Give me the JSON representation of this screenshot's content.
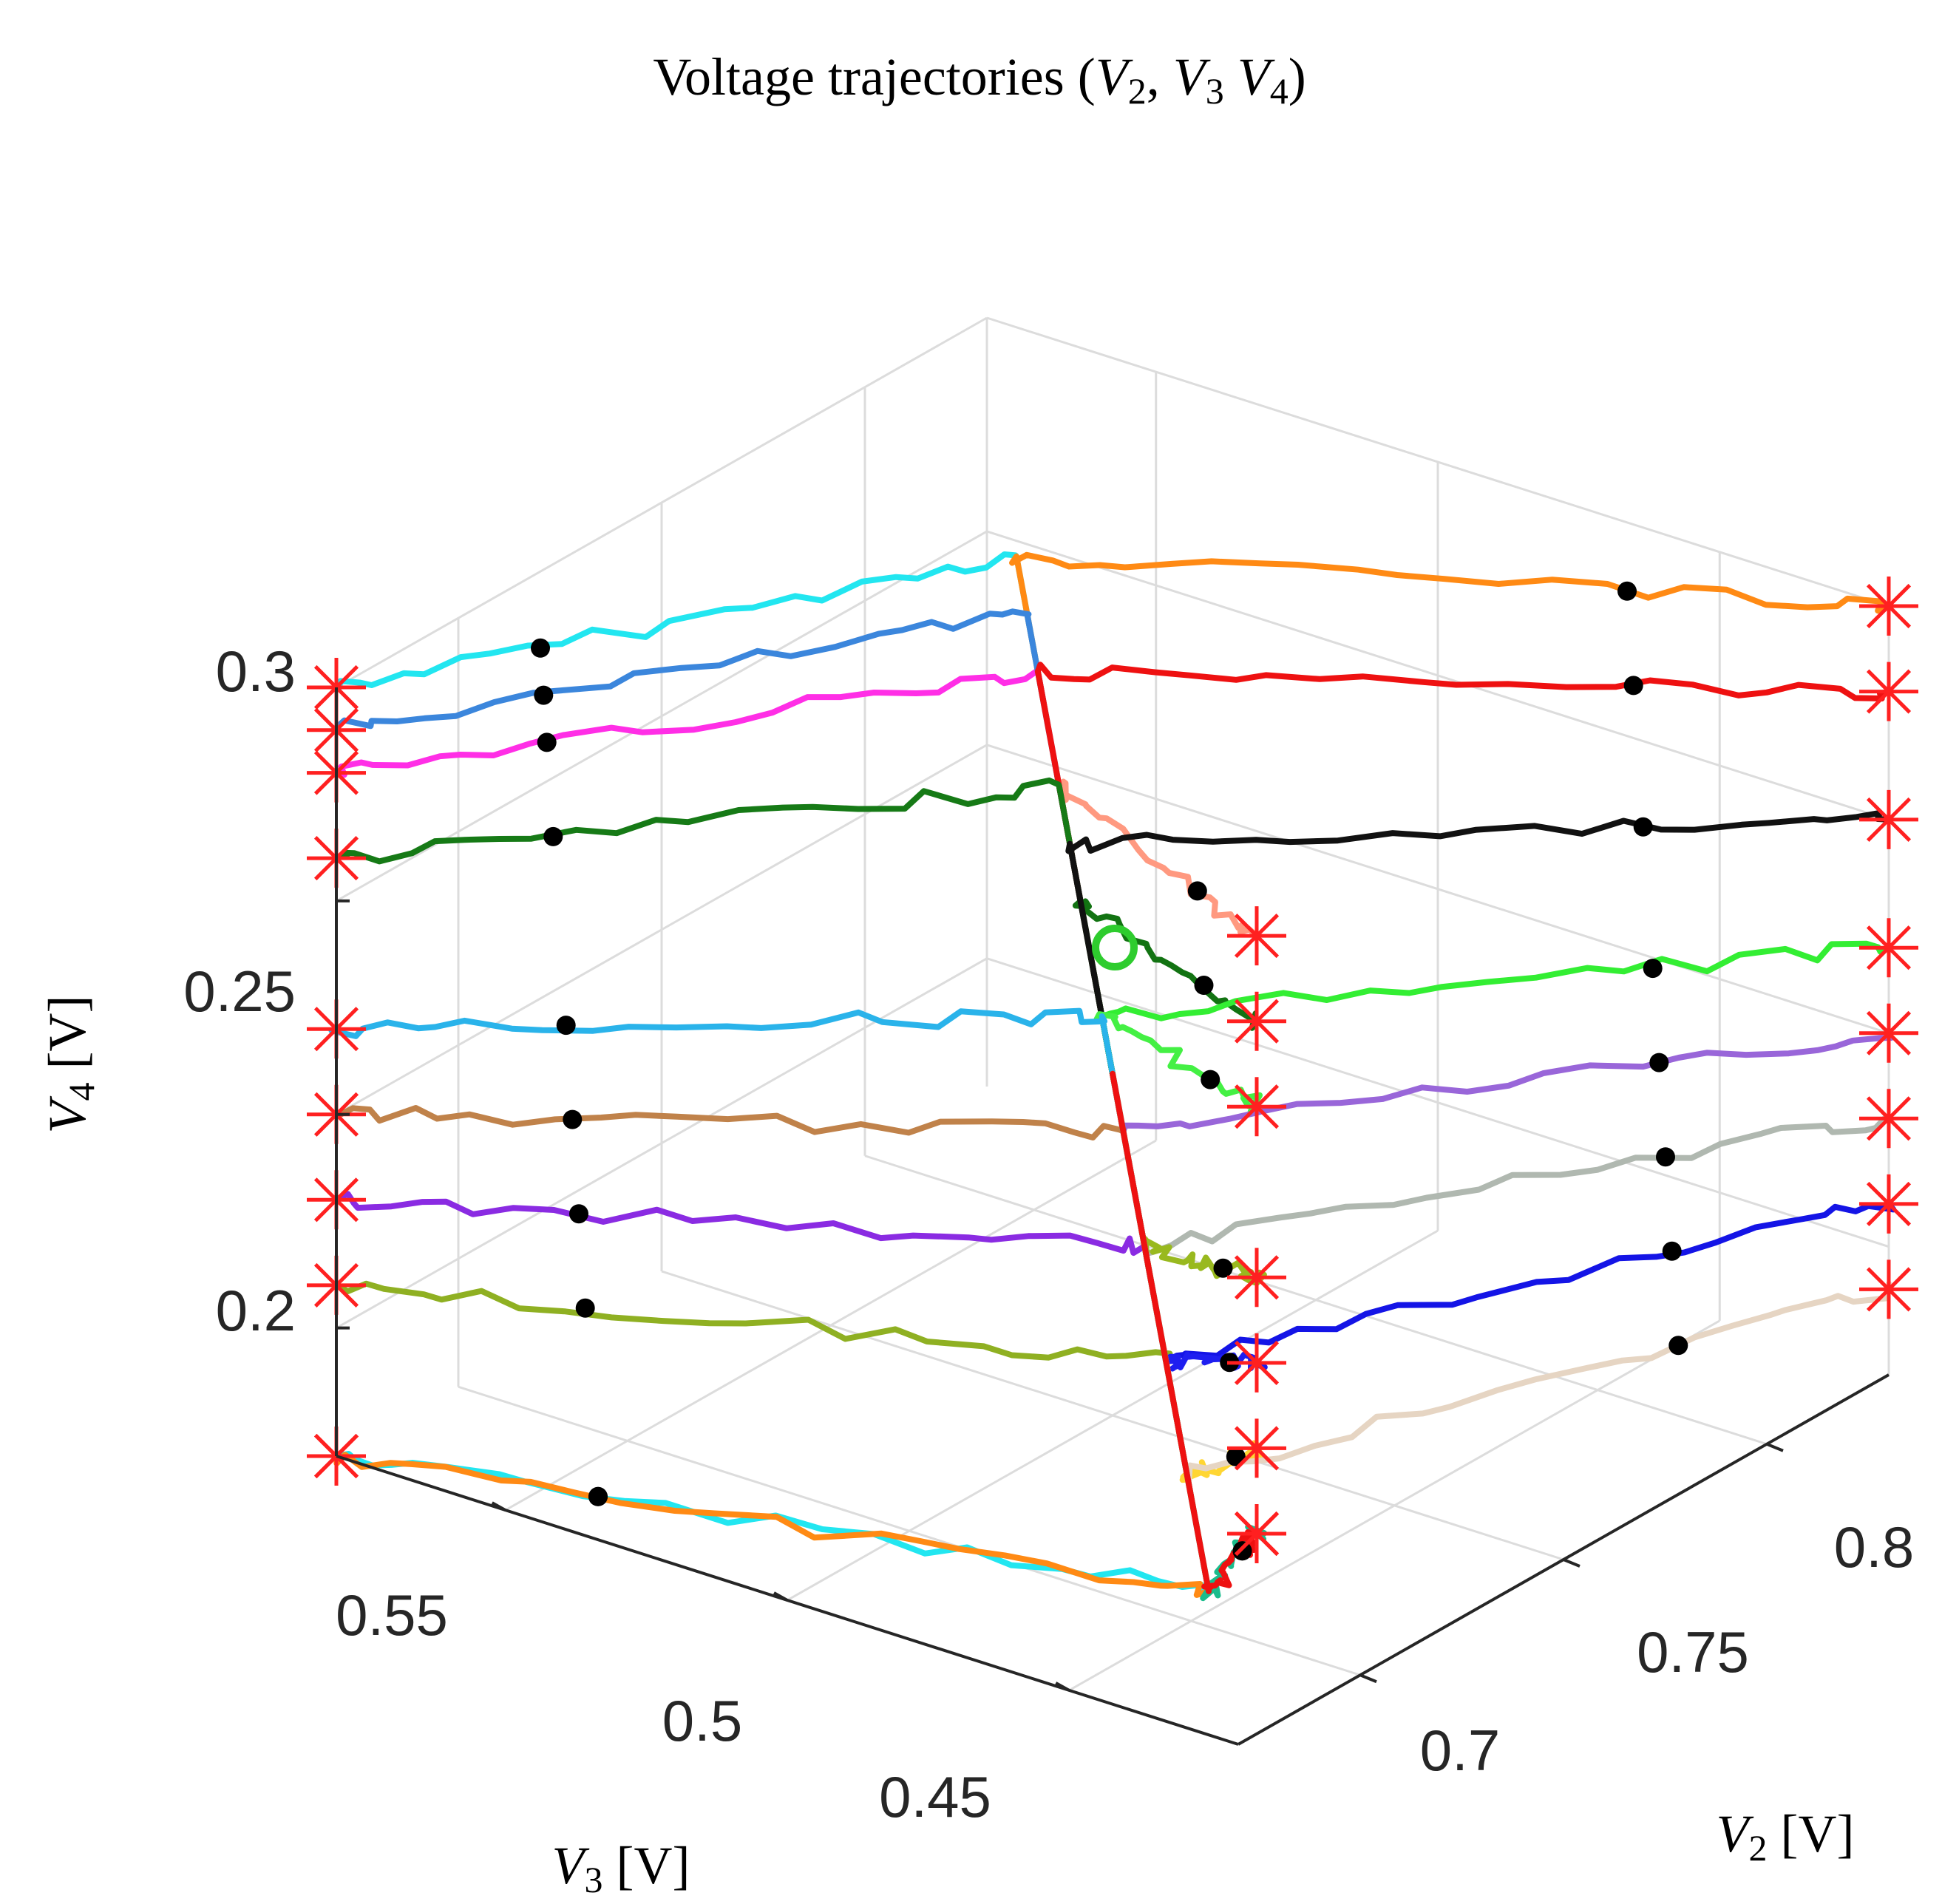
{
  "chart_data": {
    "type": "line3d",
    "title": {
      "prefix": "Voltage trajectories (",
      "v2": "V",
      "v2_sub": "2",
      "sep1": ", ",
      "v3": "V",
      "v3_sub": "3",
      "sep2": " ",
      "v4": "V",
      "v4_sub": "4",
      "suffix": ")"
    },
    "axes": {
      "x": {
        "name": "V",
        "sub": "2",
        "unit": " [V]",
        "range": [
          0.67,
          0.83
        ],
        "ticks": [
          "0.7",
          "0.75",
          "0.8"
        ]
      },
      "y": {
        "name": "V",
        "sub": "3",
        "unit": " [V]",
        "range": [
          0.42,
          0.58
        ],
        "ticks": [
          "0.45",
          "0.5",
          "0.55"
        ]
      },
      "z": {
        "name": "V",
        "sub": "4",
        "unit": " [V]",
        "range": [
          0.17,
          0.35
        ],
        "ticks": [
          "0.2",
          "0.25",
          "0.3"
        ]
      }
    },
    "grid": true,
    "equilibrium": {
      "v2": 0.75,
      "v3": 0.5,
      "v4": 0.25,
      "color": "#2ecc2e"
    },
    "start_marker_color": "#ff2020",
    "series": [
      {
        "name": "cyan-top",
        "color": "#22e6f0",
        "start": [
          0.67,
          0.58,
          0.35
        ]
      },
      {
        "name": "magenta",
        "color": "#ff2ee6",
        "start": [
          0.67,
          0.58,
          0.33
        ]
      },
      {
        "name": "orange-top",
        "color": "#ff8a14",
        "start": [
          0.83,
          0.42,
          0.35
        ]
      },
      {
        "name": "salmon",
        "color": "#ff9980",
        "start": [
          0.73,
          0.46,
          0.31
        ]
      },
      {
        "name": "steel-blue",
        "color": "#3b86dc",
        "start": [
          0.67,
          0.58,
          0.34
        ]
      },
      {
        "name": "red-top",
        "color": "#ee1111",
        "start": [
          0.83,
          0.42,
          0.33
        ]
      },
      {
        "name": "dark-green",
        "color": "#167a16",
        "start": [
          0.67,
          0.58,
          0.31
        ]
      },
      {
        "name": "dark-green-2",
        "color": "#127312",
        "start": [
          0.73,
          0.46,
          0.29
        ]
      },
      {
        "name": "black",
        "color": "#111111",
        "start": [
          0.83,
          0.42,
          0.3
        ]
      },
      {
        "name": "lime",
        "color": "#33ee33",
        "start": [
          0.83,
          0.42,
          0.27
        ]
      },
      {
        "name": "lime-2",
        "color": "#44f044",
        "start": [
          0.73,
          0.46,
          0.27
        ]
      },
      {
        "name": "sky-blue",
        "color": "#2ab3ea",
        "start": [
          0.67,
          0.58,
          0.27
        ]
      },
      {
        "name": "brown",
        "color": "#c0824a",
        "start": [
          0.67,
          0.58,
          0.25
        ]
      },
      {
        "name": "violet",
        "color": "#9966d9",
        "start": [
          0.83,
          0.42,
          0.25
        ]
      },
      {
        "name": "grey",
        "color": "#b0b8b0",
        "start": [
          0.83,
          0.42,
          0.23
        ]
      },
      {
        "name": "purple",
        "color": "#8a2be2",
        "start": [
          0.67,
          0.58,
          0.23
        ]
      },
      {
        "name": "olive",
        "color": "#8fb022",
        "start": [
          0.67,
          0.58,
          0.21
        ]
      },
      {
        "name": "olive-2",
        "color": "#99b91f",
        "start": [
          0.73,
          0.46,
          0.23
        ]
      },
      {
        "name": "blue",
        "color": "#1414e6",
        "start": [
          0.83,
          0.42,
          0.21
        ]
      },
      {
        "name": "blue-2",
        "color": "#1e1ef0",
        "start": [
          0.73,
          0.46,
          0.21
        ]
      },
      {
        "name": "cyan-bottom",
        "color": "#22e6f0",
        "start": [
          0.67,
          0.58,
          0.17
        ]
      },
      {
        "name": "yellow",
        "color": "#ffd633",
        "start": [
          0.73,
          0.46,
          0.19
        ]
      },
      {
        "name": "orange-bottom",
        "color": "#ff8a14",
        "start": [
          0.67,
          0.58,
          0.17
        ]
      },
      {
        "name": "beige",
        "color": "#e6d5c3",
        "start": [
          0.83,
          0.42,
          0.19
        ]
      },
      {
        "name": "teal",
        "color": "#1abc8c",
        "start": [
          0.73,
          0.46,
          0.17
        ]
      },
      {
        "name": "red-bottom",
        "color": "#ee1111",
        "start": [
          0.73,
          0.46,
          0.17
        ]
      }
    ]
  }
}
